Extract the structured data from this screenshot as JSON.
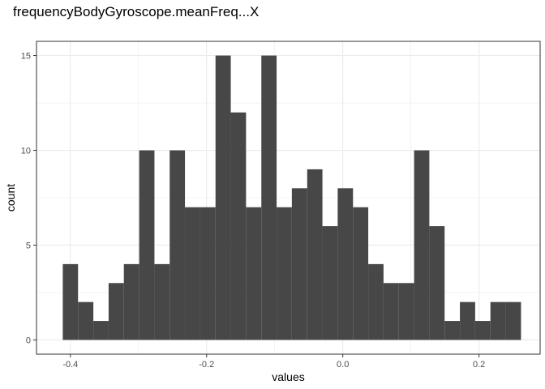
{
  "chart_data": {
    "type": "bar",
    "subtype": "histogram",
    "title": "frequencyBodyGyroscope.meanFreq...X",
    "xlabel": "values",
    "ylabel": "count",
    "xlim": [
      -0.4498,
      0.2898
    ],
    "ylim": [
      -0.75,
      15.75
    ],
    "x_ticks": [
      -0.4,
      -0.2,
      0.0,
      0.2
    ],
    "x_tick_labels": [
      "-0.4",
      "-0.2",
      "0.0",
      "0.2"
    ],
    "y_ticks": [
      0,
      5,
      10,
      15
    ],
    "y_tick_labels": [
      "0",
      "5",
      "10",
      "15"
    ],
    "bins": [
      {
        "x0": -0.4112,
        "x1": -0.3888,
        "count": 4
      },
      {
        "x0": -0.3888,
        "x1": -0.3663,
        "count": 2
      },
      {
        "x0": -0.3663,
        "x1": -0.3439,
        "count": 1
      },
      {
        "x0": -0.3439,
        "x1": -0.3215,
        "count": 3
      },
      {
        "x0": -0.3215,
        "x1": -0.299,
        "count": 4
      },
      {
        "x0": -0.299,
        "x1": -0.2766,
        "count": 10
      },
      {
        "x0": -0.2766,
        "x1": -0.2542,
        "count": 4
      },
      {
        "x0": -0.2542,
        "x1": -0.2318,
        "count": 10
      },
      {
        "x0": -0.2318,
        "x1": -0.2093,
        "count": 7
      },
      {
        "x0": -0.2093,
        "x1": -0.1869,
        "count": 7
      },
      {
        "x0": -0.1869,
        "x1": -0.1645,
        "count": 15
      },
      {
        "x0": -0.1645,
        "x1": -0.1421,
        "count": 12
      },
      {
        "x0": -0.1421,
        "x1": -0.1196,
        "count": 7
      },
      {
        "x0": -0.1196,
        "x1": -0.0972,
        "count": 15
      },
      {
        "x0": -0.0972,
        "x1": -0.0748,
        "count": 7
      },
      {
        "x0": -0.0748,
        "x1": -0.0523,
        "count": 8
      },
      {
        "x0": -0.0523,
        "x1": -0.0299,
        "count": 9
      },
      {
        "x0": -0.0299,
        "x1": -0.0075,
        "count": 6
      },
      {
        "x0": -0.0075,
        "x1": 0.015,
        "count": 8
      },
      {
        "x0": 0.015,
        "x1": 0.0374,
        "count": 7
      },
      {
        "x0": 0.0374,
        "x1": 0.0598,
        "count": 4
      },
      {
        "x0": 0.0598,
        "x1": 0.0822,
        "count": 3
      },
      {
        "x0": 0.0822,
        "x1": 0.1047,
        "count": 3
      },
      {
        "x0": 0.1047,
        "x1": 0.1271,
        "count": 10
      },
      {
        "x0": 0.1271,
        "x1": 0.1495,
        "count": 6
      },
      {
        "x0": 0.1495,
        "x1": 0.172,
        "count": 1
      },
      {
        "x0": 0.172,
        "x1": 0.1944,
        "count": 2
      },
      {
        "x0": 0.1944,
        "x1": 0.2168,
        "count": 1
      },
      {
        "x0": 0.2168,
        "x1": 0.2393,
        "count": 2
      },
      {
        "x0": 0.2393,
        "x1": 0.2617,
        "count": 2
      }
    ],
    "bar_color": "#474747",
    "grid": true,
    "grid_color": "#ebebeb",
    "panel_border_color": "#333333",
    "background": "#ffffff"
  }
}
